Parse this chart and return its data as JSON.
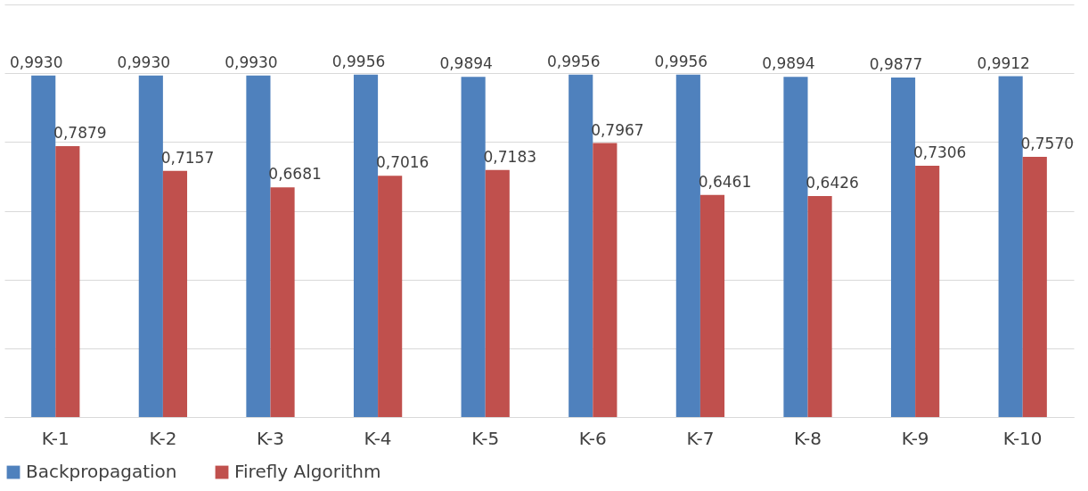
{
  "chart_data": {
    "type": "bar",
    "categories": [
      "K-1",
      "K-2",
      "K-3",
      "K-4",
      "K-5",
      "K-6",
      "K-7",
      "K-8",
      "K-9",
      "K-10"
    ],
    "series": [
      {
        "name": "Backpropagation",
        "color": "#4f81bd",
        "values": [
          0.993,
          0.993,
          0.993,
          0.9956,
          0.9894,
          0.9956,
          0.9956,
          0.9894,
          0.9877,
          0.9912
        ],
        "value_labels": [
          "0,9930",
          "0,9930",
          "0,9930",
          "0,9956",
          "0,9894",
          "0,9956",
          "0,9956",
          "0,9894",
          "0,9877",
          "0,9912"
        ]
      },
      {
        "name": "Firefly Algorithm",
        "color": "#c0504d",
        "values": [
          0.7879,
          0.7157,
          0.6681,
          0.7016,
          0.7183,
          0.7967,
          0.6461,
          0.6426,
          0.7306,
          0.757
        ],
        "value_labels": [
          "0,7879",
          "0,7157",
          "0,6681",
          "0,7016",
          "0,7183",
          "0,7967",
          "0,6461",
          "0,6426",
          "0,7306",
          "0,7570"
        ]
      }
    ],
    "ylim": [
      0,
      1.2
    ],
    "yticks": [
      0,
      0.2,
      0.4,
      0.6,
      0.8,
      1.0,
      1.2
    ],
    "tick_labels": "x",
    "grid": "y",
    "legend": "bottom"
  }
}
